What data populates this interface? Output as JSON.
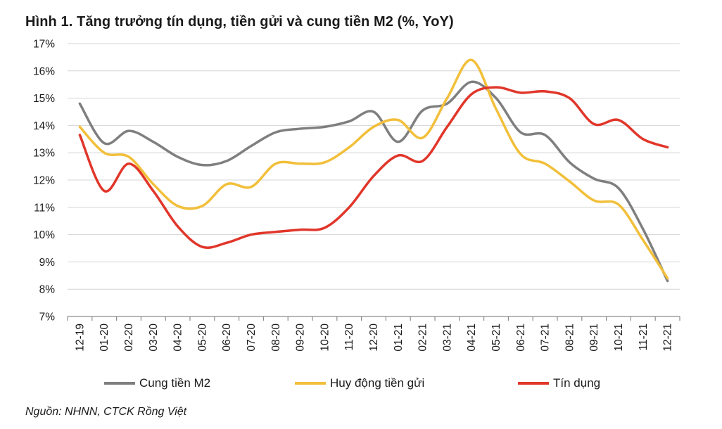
{
  "title": "Hình 1. Tăng trưởng tín dụng, tiền gửi và cung tiền M2 (%, YoY)",
  "source": "Nguồn: NHNN, CTCK Rồng Việt",
  "chart_data": {
    "type": "line",
    "title": "Hình 1. Tăng trưởng tín dụng, tiền gửi và cung tiền M2 (%, YoY)",
    "xlabel": "",
    "ylabel": "",
    "ylim": [
      7,
      17
    ],
    "yticks": [
      7,
      8,
      9,
      10,
      11,
      12,
      13,
      14,
      15,
      16,
      17
    ],
    "ytick_labels": [
      "7%",
      "8%",
      "9%",
      "10%",
      "11%",
      "12%",
      "13%",
      "14%",
      "15%",
      "16%",
      "17%"
    ],
    "grid": "horizontal",
    "legend_position": "bottom",
    "categories": [
      "12-19",
      "01-20",
      "02-20",
      "03-20",
      "04-20",
      "05-20",
      "06-20",
      "07-20",
      "08-20",
      "09-20",
      "10-20",
      "11-20",
      "12-20",
      "01-21",
      "02-21",
      "03-21",
      "04-21",
      "05-21",
      "06-21",
      "07-21",
      "08-21",
      "09-21",
      "10-21",
      "11-21",
      "12-21"
    ],
    "series": [
      {
        "name": "Cung tiền M2",
        "color": "#7f7f7f",
        "values": [
          14.8,
          13.35,
          13.8,
          13.4,
          12.85,
          12.55,
          12.7,
          13.25,
          13.75,
          13.88,
          13.95,
          14.15,
          14.5,
          13.4,
          14.55,
          14.8,
          15.6,
          15.0,
          13.75,
          13.65,
          12.65,
          12.05,
          11.7,
          10.2,
          8.3
        ]
      },
      {
        "name": "Huy động tiền gửi",
        "color": "#f2bf3a",
        "values": [
          13.95,
          13.0,
          12.85,
          11.85,
          11.05,
          11.05,
          11.85,
          11.75,
          12.6,
          12.6,
          12.65,
          13.2,
          13.95,
          14.2,
          13.55,
          15.0,
          16.4,
          14.6,
          12.95,
          12.6,
          11.95,
          11.25,
          11.1,
          9.8,
          8.4
        ]
      },
      {
        "name": "Tín dụng",
        "color": "#e1362a",
        "values": [
          13.65,
          11.6,
          12.6,
          11.6,
          10.3,
          9.55,
          9.7,
          10.0,
          10.1,
          10.18,
          10.25,
          11.0,
          12.15,
          12.9,
          12.7,
          13.95,
          15.15,
          15.4,
          15.2,
          15.25,
          15.0,
          14.05,
          14.2,
          13.5,
          13.2
        ]
      }
    ]
  }
}
